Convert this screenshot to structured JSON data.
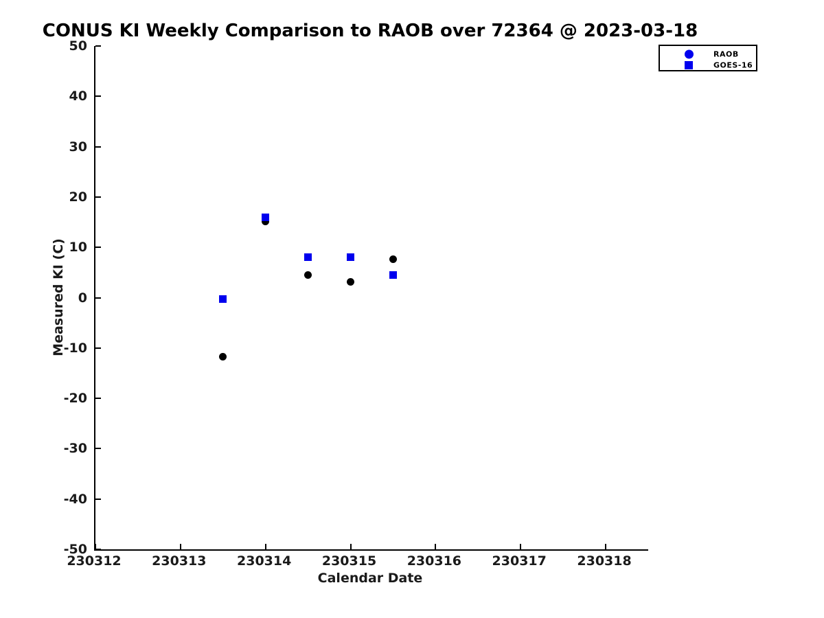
{
  "page": {
    "background_color": "#ffffff"
  },
  "chart_data": {
    "type": "scatter",
    "title": "CONUS KI Weekly Comparison to RAOB over 72364 @ 2023-03-18",
    "xlabel": "Calendar Date",
    "ylabel": "Measured KI (C)",
    "xlim": [
      230312,
      230318.5
    ],
    "ylim": [
      -50,
      50
    ],
    "xticks": [
      230312,
      230313,
      230314,
      230315,
      230316,
      230317,
      230318
    ],
    "yticks": [
      -50,
      -40,
      -30,
      -20,
      -10,
      0,
      10,
      20,
      30,
      40,
      50
    ],
    "grid": false,
    "legend_position": "top-right",
    "axis_color": "#000000",
    "tick_label_color": "#1a1a1a",
    "series": [
      {
        "name": "RAOB",
        "marker": "circle",
        "plot_color": "#000000",
        "legend_color": "#0000ee",
        "x": [
          230313.5,
          230314.0,
          230314.5,
          230315.0,
          230315.5
        ],
        "y": [
          -11.8,
          15.2,
          4.5,
          3.1,
          7.7
        ]
      },
      {
        "name": "GOES-16",
        "marker": "square",
        "plot_color": "#0000ee",
        "legend_color": "#0000ee",
        "x": [
          230313.5,
          230314.0,
          230314.5,
          230315.0,
          230315.5
        ],
        "y": [
          -0.3,
          15.9,
          8.1,
          8.1,
          4.5
        ]
      }
    ]
  }
}
